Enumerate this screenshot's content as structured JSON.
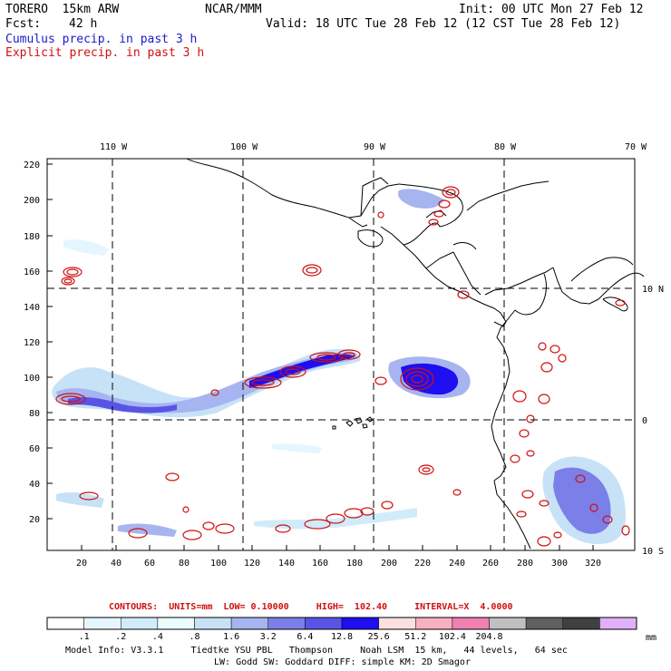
{
  "header": {
    "model_name": "TORERO  15km ARW",
    "center": "NCAR/MMM",
    "init": "Init: 00 UTC Mon 27 Feb 12",
    "fcst_label": "Fcst:",
    "fcst_value": "42 h",
    "valid": "Valid: 18 UTC Tue 28 Feb 12 (12 CST Tue 28 Feb 12)",
    "field_cumulus": "Cumulus precip. in past 3 h",
    "field_explicit": "Explicit precip. in past 3 h"
  },
  "colors": {
    "cumulus": "#1a1acc",
    "explicit": "#d01010",
    "coast": "#000000"
  },
  "map": {
    "top_lon_labels": [
      "110 W",
      "100 W",
      "90 W",
      "80 W",
      "70 W"
    ],
    "right_lat_labels": [
      "10 N",
      "0",
      "10 S"
    ],
    "left_ticks": [
      "220",
      "200",
      "180",
      "160",
      "140",
      "120",
      "100",
      "80",
      "60",
      "40",
      "20"
    ],
    "bottom_ticks": [
      "20",
      "40",
      "60",
      "80",
      "100",
      "120",
      "140",
      "160",
      "180",
      "200",
      "220",
      "240",
      "260",
      "280",
      "300",
      "320"
    ]
  },
  "contours": {
    "text": "CONTOURS:  UNITS=mm  LOW= 0.10000     HIGH=  102.40     INTERVAL=X  4.0000"
  },
  "colorbar": {
    "colors": [
      "#ffffff",
      "#e6f6ff",
      "#d0ecfb",
      "#ecfcfc",
      "#c7e2f7",
      "#a6b5f0",
      "#7b7fe8",
      "#5a54e6",
      "#1f0ef0",
      "#fbe0e0",
      "#f7b0c0",
      "#f080b0",
      "#c0c0c0",
      "#606060",
      "#404040",
      "#e0b0f8"
    ],
    "labels": [
      ".1",
      ".2",
      ".4",
      ".8",
      "1.6",
      "3.2",
      "6.4",
      "12.8",
      "25.6",
      "51.2",
      "102.4",
      "204.8"
    ],
    "units": "mm"
  },
  "footer": {
    "line1": "Model Info: V3.3.1     Tiedtke YSU PBL   Thompson     Noah LSM  15 km,   44 levels,   64 sec",
    "line2": "LW: Godd SW: Goddard DIFF: simple KM: 2D Smagor"
  }
}
